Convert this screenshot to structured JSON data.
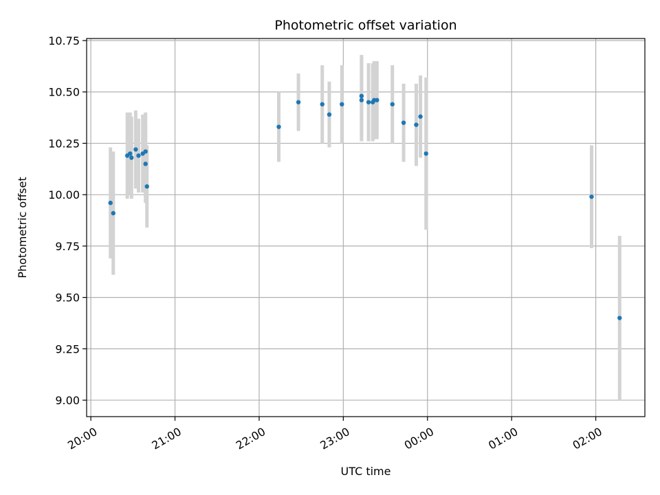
{
  "chart_data": {
    "type": "scatter",
    "title": "Photometric offset variation",
    "xlabel": "UTC time",
    "ylabel": "Photometric offset",
    "grid": true,
    "x_unit": "UTC time (HH:MM), points after midnight are on the next day",
    "xlim": [
      "19:57",
      "02:35"
    ],
    "ylim": [
      8.92,
      10.76
    ],
    "x_ticks": [
      "20:00",
      "21:00",
      "22:00",
      "23:00",
      "00:00",
      "01:00",
      "02:00"
    ],
    "y_ticks": [
      "9.00",
      "9.25",
      "9.50",
      "9.75",
      "10.00",
      "10.25",
      "10.50",
      "10.75"
    ],
    "colors": {
      "points": "#1f77b4",
      "error_bars": "#d3d3d3",
      "grid": "#b0b0b0"
    },
    "points": [
      {
        "time": "20:14",
        "y": 9.96,
        "err": 0.27
      },
      {
        "time": "20:16",
        "y": 9.91,
        "err": 0.3
      },
      {
        "time": "20:26",
        "y": 10.19,
        "err": 0.21
      },
      {
        "time": "20:28",
        "y": 10.2,
        "err": 0.2
      },
      {
        "time": "20:29",
        "y": 10.18,
        "err": 0.2
      },
      {
        "time": "20:32",
        "y": 10.22,
        "err": 0.19
      },
      {
        "time": "20:34",
        "y": 10.19,
        "err": 0.18
      },
      {
        "time": "20:37",
        "y": 10.2,
        "err": 0.19
      },
      {
        "time": "20:39",
        "y": 10.21,
        "err": 0.19
      },
      {
        "time": "20:39",
        "y": 10.15,
        "err": 0.19
      },
      {
        "time": "20:40",
        "y": 10.04,
        "err": 0.2
      },
      {
        "time": "22:14",
        "y": 10.33,
        "err": 0.17
      },
      {
        "time": "22:28",
        "y": 10.45,
        "err": 0.14
      },
      {
        "time": "22:45",
        "y": 10.44,
        "err": 0.19
      },
      {
        "time": "22:50",
        "y": 10.39,
        "err": 0.16
      },
      {
        "time": "22:59",
        "y": 10.44,
        "err": 0.19
      },
      {
        "time": "23:13",
        "y": 10.46,
        "err": 0.2
      },
      {
        "time": "23:13",
        "y": 10.48,
        "err": 0.2
      },
      {
        "time": "23:18",
        "y": 10.45,
        "err": 0.19
      },
      {
        "time": "23:21",
        "y": 10.45,
        "err": 0.19
      },
      {
        "time": "23:22",
        "y": 10.46,
        "err": 0.19
      },
      {
        "time": "23:24",
        "y": 10.46,
        "err": 0.19
      },
      {
        "time": "23:35",
        "y": 10.44,
        "err": 0.19
      },
      {
        "time": "23:43",
        "y": 10.35,
        "err": 0.19
      },
      {
        "time": "23:52",
        "y": 10.34,
        "err": 0.2
      },
      {
        "time": "23:55",
        "y": 10.38,
        "err": 0.2
      },
      {
        "time": "23:59",
        "y": 10.2,
        "err": 0.37
      },
      {
        "time": "01:57",
        "y": 9.99,
        "err": 0.25
      },
      {
        "time": "02:17",
        "y": 9.4,
        "err": 0.4
      }
    ]
  }
}
